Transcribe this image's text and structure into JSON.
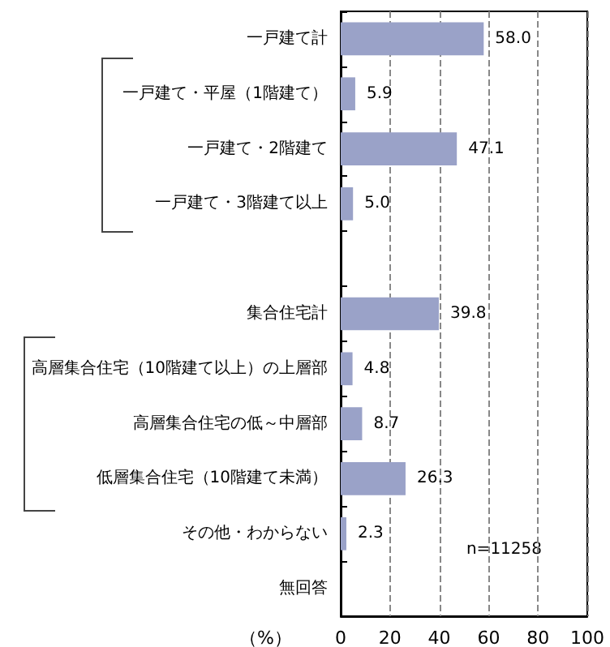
{
  "chart_data": {
    "type": "bar",
    "orientation": "horizontal",
    "xlabel": "（%）",
    "categories": [
      "一戸建て計",
      "一戸建て・平屋（1階建て）",
      "一戸建て・2階建て",
      "一戸建て・3階建て以上",
      null,
      "集合住宅計",
      "高層集合住宅（10階建て以上）の上層部",
      "高層集合住宅の低～中層部",
      "低層集合住宅（10階建て未満）",
      "その他・わからない",
      "無回答"
    ],
    "values": [
      58.0,
      5.9,
      47.1,
      5.0,
      null,
      39.8,
      4.8,
      8.7,
      26.3,
      2.3,
      null
    ],
    "value_labels": [
      "58.0",
      "5.9",
      "47.1",
      "5.0",
      null,
      "39.8",
      "4.8",
      "8.7",
      "26.3",
      "2.3",
      null
    ],
    "color": "#9aa2c8",
    "xlim": [
      0,
      100
    ],
    "xticks": [
      0,
      20,
      40,
      60,
      80,
      100
    ],
    "grid": "x",
    "annotations": [
      "n=11258"
    ]
  }
}
